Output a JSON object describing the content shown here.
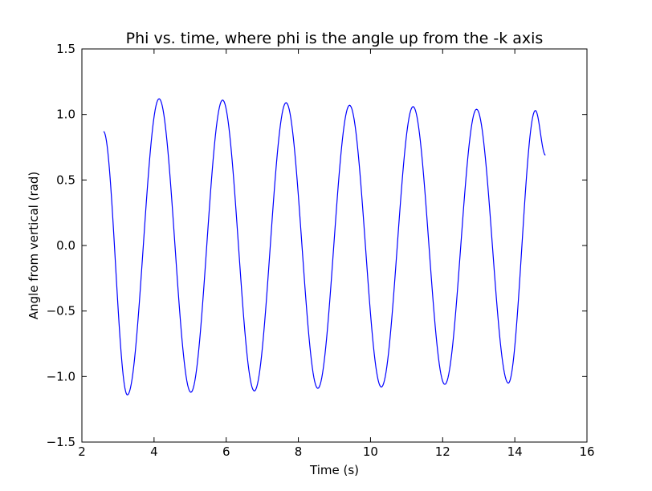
{
  "chart_data": {
    "type": "line",
    "title": "Phi vs. time, where phi is the angle up from the -k axis",
    "xlabel": "Time (s)",
    "ylabel": "Angle from vertical (rad)",
    "xlim": [
      2,
      16
    ],
    "ylim": [
      -1.5,
      1.5
    ],
    "xticks": [
      2,
      4,
      6,
      8,
      10,
      12,
      14,
      16
    ],
    "xtick_labels": [
      "2",
      "4",
      "6",
      "8",
      "10",
      "12",
      "14",
      "16"
    ],
    "yticks": [
      -1.5,
      -1.0,
      -0.5,
      0.0,
      0.5,
      1.0,
      1.5
    ],
    "ytick_labels": [
      "−1.5",
      "−1.0",
      "−0.5",
      "0.0",
      "0.5",
      "1.0",
      "1.5"
    ],
    "grid": false,
    "legend": "none",
    "series": [
      {
        "color": "#0000ff",
        "x": [
          2.6,
          3.26,
          4.14,
          5.02,
          5.9,
          6.78,
          7.66,
          8.54,
          9.42,
          10.3,
          11.18,
          12.06,
          12.94,
          13.82,
          14.57,
          14.85
        ],
        "y": [
          0.87,
          -1.14,
          1.12,
          -1.12,
          1.11,
          -1.11,
          1.09,
          -1.09,
          1.07,
          -1.08,
          1.06,
          -1.06,
          1.04,
          -1.05,
          1.03,
          0.69
        ]
      }
    ]
  }
}
